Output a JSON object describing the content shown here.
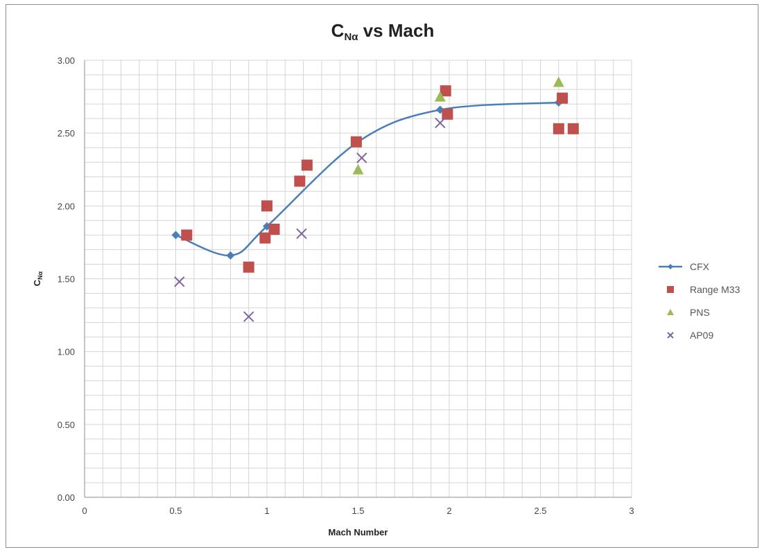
{
  "chart_data": {
    "type": "scatter",
    "title_main": "C",
    "title_sub": "Nα",
    "title_rest": " vs Mach",
    "xlabel": "Mach Number",
    "ylabel_main": "C",
    "ylabel_sub": "Nα",
    "xlim": [
      0,
      3
    ],
    "ylim": [
      0,
      3
    ],
    "xticks": [
      0,
      0.5,
      1,
      1.5,
      2,
      2.5,
      3
    ],
    "xtick_labels": [
      "0",
      "0.5",
      "1",
      "1.5",
      "2",
      "2.5",
      "3"
    ],
    "yticks": [
      0,
      0.5,
      1,
      1.5,
      2,
      2.5,
      3
    ],
    "ytick_labels": [
      "0.00",
      "0.50",
      "1.00",
      "1.50",
      "2.00",
      "2.50",
      "3.00"
    ],
    "grid": true,
    "legend_position": "right",
    "series": [
      {
        "name": "CFX",
        "type": "line",
        "marker": "diamond",
        "color": "#4a7ebb",
        "x": [
          0.5,
          0.8,
          1.0,
          1.5,
          1.95,
          2.6
        ],
        "y": [
          1.8,
          1.66,
          1.86,
          2.44,
          2.66,
          2.71
        ]
      },
      {
        "name": "Range M33",
        "type": "scatter",
        "marker": "square",
        "color": "#c0504d",
        "x": [
          0.56,
          0.9,
          0.99,
          1.0,
          1.04,
          1.18,
          1.22,
          1.49,
          1.98,
          1.99,
          2.6,
          2.62,
          2.68
        ],
        "y": [
          1.8,
          1.58,
          1.78,
          2.0,
          1.84,
          2.17,
          2.28,
          2.44,
          2.79,
          2.63,
          2.53,
          2.74,
          2.53
        ]
      },
      {
        "name": "PNS",
        "type": "scatter",
        "marker": "triangle",
        "color": "#9bbb59",
        "x": [
          1.5,
          1.95,
          2.6
        ],
        "y": [
          2.25,
          2.75,
          2.85
        ]
      },
      {
        "name": "AP09",
        "type": "scatter",
        "marker": "x",
        "color": "#8064a2",
        "x": [
          0.52,
          0.9,
          1.19,
          1.52,
          1.95
        ],
        "y": [
          1.48,
          1.24,
          1.81,
          2.33,
          2.57
        ]
      }
    ]
  }
}
